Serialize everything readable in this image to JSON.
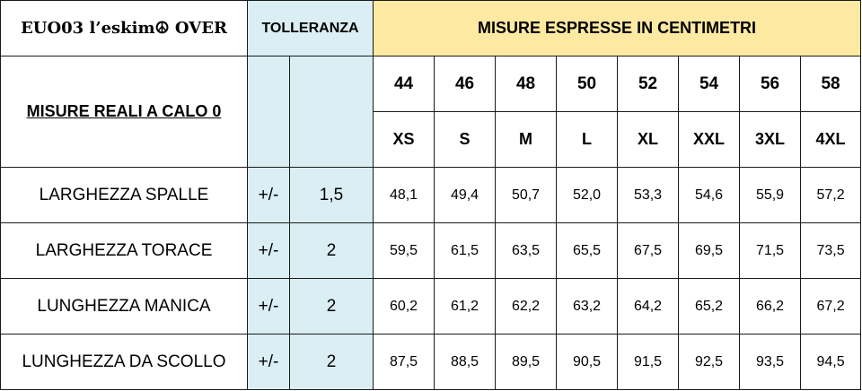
{
  "header": {
    "product": "EUO03 l’eskim☮ OVER",
    "tolerance": "TOLLERANZA",
    "measures": "MISURE ESPRESSE IN CENTIMETRI"
  },
  "subheader": {
    "real_measures": "MISURE REALI A CALO 0"
  },
  "sizes": {
    "numbers": [
      "44",
      "46",
      "48",
      "50",
      "52",
      "54",
      "56",
      "58"
    ],
    "labels": [
      "XS",
      "S",
      "M",
      "L",
      "XL",
      "XXL",
      "3XL",
      "4XL"
    ]
  },
  "rows": [
    {
      "label": "LARGHEZZA SPALLE",
      "sign": "+/-",
      "tolerance": "1,5",
      "values": [
        "48,1",
        "49,4",
        "50,7",
        "52,0",
        "53,3",
        "54,6",
        "55,9",
        "57,2"
      ]
    },
    {
      "label": "LARGHEZZA TORACE",
      "sign": "+/-",
      "tolerance": "2",
      "values": [
        "59,5",
        "61,5",
        "63,5",
        "65,5",
        "67,5",
        "69,5",
        "71,5",
        "73,5"
      ]
    },
    {
      "label": "LUNGHEZZA MANICA",
      "sign": "+/-",
      "tolerance": "2",
      "values": [
        "60,2",
        "61,2",
        "62,2",
        "63,2",
        "64,2",
        "65,2",
        "66,2",
        "67,2"
      ]
    },
    {
      "label": "LUNGHEZZA DA SCOLLO",
      "sign": "+/-",
      "tolerance": "2",
      "values": [
        "87,5",
        "88,5",
        "89,5",
        "90,5",
        "91,5",
        "92,5",
        "93,5",
        "94,5"
      ]
    }
  ],
  "colors": {
    "tolerance_fill": "#DAEEF3",
    "measures_header_fill": "#FDE9A2",
    "border": "#1a1a1a"
  }
}
